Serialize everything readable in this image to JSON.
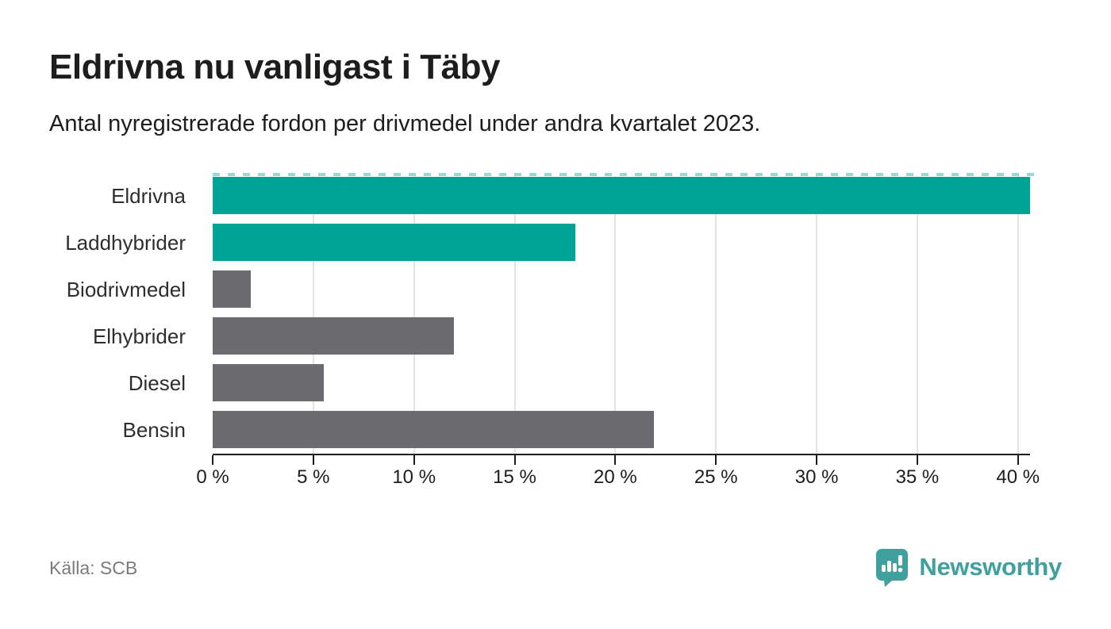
{
  "title": "Eldrivna nu vanligast i Täby",
  "subtitle": "Antal nyregistrerade fordon per drivmedel under andra kvartalet 2023.",
  "source": "Källa: SCB",
  "brand": {
    "name": "Newsworthy",
    "logo_icon": "bar-chart-exclamation-badge"
  },
  "colors": {
    "accent_teal": "#00a497",
    "muted_gray": "#6c6b70",
    "dashed_line": "#96dad5",
    "gridline": "#e4e4e4",
    "axis": "#1d1d1b",
    "source_text": "#7b7b7b",
    "brand_teal": "#3fa09d"
  },
  "chart_data": {
    "type": "bar",
    "orientation": "horizontal",
    "title": "Eldrivna nu vanligast i Täby",
    "subtitle": "Antal nyregistrerade fordon per drivmedel under andra kvartalet 2023.",
    "categories": [
      "Eldrivna",
      "Laddhybrider",
      "Biodrivmedel",
      "Elhybrider",
      "Diesel",
      "Bensin"
    ],
    "values": [
      40.6,
      18.0,
      1.9,
      12.0,
      5.5,
      21.9
    ],
    "unit": "%",
    "bar_colors": [
      "#00a497",
      "#00a497",
      "#6c6b70",
      "#6c6b70",
      "#6c6b70",
      "#6c6b70"
    ],
    "xlim": [
      0,
      40.6
    ],
    "x_ticks": [
      0,
      5,
      10,
      15,
      20,
      25,
      30,
      35,
      40
    ],
    "x_tick_labels": [
      "0 %",
      "5 %",
      "10 %",
      "15 %",
      "20 %",
      "25 %",
      "30 %",
      "35 %",
      "40 %"
    ],
    "grid": true,
    "legend": false
  }
}
